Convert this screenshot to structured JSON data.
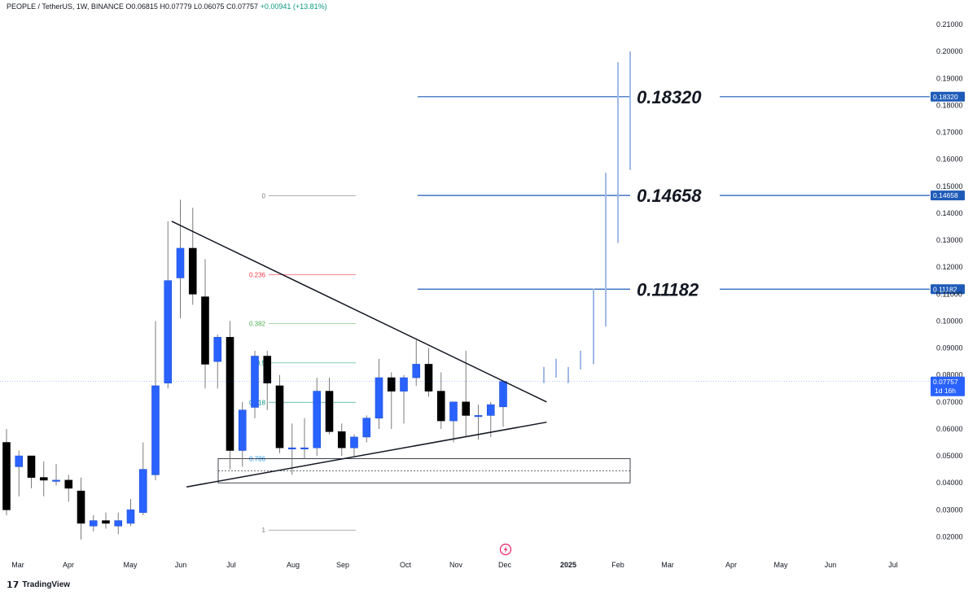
{
  "header": {
    "symbol": "PEOPLE / TetherUS, 1W, BINANCE",
    "ohlc": "O0.06815 H0.07779 L0.06075 C0.07757",
    "change": "+0.00941 (+13.81%)"
  },
  "brand": {
    "name": "TradingView"
  },
  "colors": {
    "bull": "#2962ff",
    "bear": "#000000",
    "target_line": "#1e5bb8",
    "projection": "#9fb9e8"
  },
  "chart_data": {
    "type": "candlestick",
    "title": "PEOPLE / TetherUS, 1W, BINANCE",
    "ylim": [
      0.014,
      0.214
    ],
    "y_ticks": [
      "0.21000",
      "0.20000",
      "0.19000",
      "0.18000",
      "0.17000",
      "0.16000",
      "0.15000",
      "0.14000",
      "0.13000",
      "0.12000",
      "0.11000",
      "0.10000",
      "0.09000",
      "0.08000",
      "0.07000",
      "0.06000",
      "0.05000",
      "0.04000",
      "0.03000",
      "0.02000"
    ],
    "x_ticks": [
      "Mar",
      "Apr",
      "May",
      "Jun",
      "Jul",
      "Aug",
      "Sep",
      "Oct",
      "Nov",
      "Dec",
      "2025",
      "Feb",
      "Mar",
      "Apr",
      "May",
      "Jun",
      "Jul"
    ],
    "candles": [
      {
        "o": 0.055,
        "h": 0.06,
        "l": 0.028,
        "c": 0.03
      },
      {
        "o": 0.046,
        "h": 0.052,
        "l": 0.035,
        "c": 0.05
      },
      {
        "o": 0.05,
        "h": 0.05,
        "l": 0.038,
        "c": 0.042
      },
      {
        "o": 0.042,
        "h": 0.048,
        "l": 0.035,
        "c": 0.041
      },
      {
        "o": 0.041,
        "h": 0.047,
        "l": 0.039,
        "c": 0.041
      },
      {
        "o": 0.041,
        "h": 0.043,
        "l": 0.033,
        "c": 0.038
      },
      {
        "o": 0.037,
        "h": 0.042,
        "l": 0.019,
        "c": 0.025
      },
      {
        "o": 0.024,
        "h": 0.028,
        "l": 0.022,
        "c": 0.026
      },
      {
        "o": 0.026,
        "h": 0.029,
        "l": 0.023,
        "c": 0.025
      },
      {
        "o": 0.024,
        "h": 0.029,
        "l": 0.021,
        "c": 0.026
      },
      {
        "o": 0.025,
        "h": 0.034,
        "l": 0.024,
        "c": 0.03
      },
      {
        "o": 0.029,
        "h": 0.055,
        "l": 0.028,
        "c": 0.045
      },
      {
        "o": 0.043,
        "h": 0.1,
        "l": 0.041,
        "c": 0.076
      },
      {
        "o": 0.077,
        "h": 0.137,
        "l": 0.075,
        "c": 0.115
      },
      {
        "o": 0.116,
        "h": 0.145,
        "l": 0.101,
        "c": 0.127
      },
      {
        "o": 0.127,
        "h": 0.142,
        "l": 0.106,
        "c": 0.11
      },
      {
        "o": 0.109,
        "h": 0.123,
        "l": 0.075,
        "c": 0.084
      },
      {
        "o": 0.085,
        "h": 0.095,
        "l": 0.075,
        "c": 0.094
      },
      {
        "o": 0.094,
        "h": 0.1,
        "l": 0.045,
        "c": 0.052
      },
      {
        "o": 0.052,
        "h": 0.07,
        "l": 0.046,
        "c": 0.067
      },
      {
        "o": 0.068,
        "h": 0.089,
        "l": 0.064,
        "c": 0.087
      },
      {
        "o": 0.087,
        "h": 0.089,
        "l": 0.067,
        "c": 0.077
      },
      {
        "o": 0.076,
        "h": 0.08,
        "l": 0.051,
        "c": 0.053
      },
      {
        "o": 0.053,
        "h": 0.062,
        "l": 0.043,
        "c": 0.053
      },
      {
        "o": 0.053,
        "h": 0.064,
        "l": 0.049,
        "c": 0.053
      },
      {
        "o": 0.053,
        "h": 0.079,
        "l": 0.05,
        "c": 0.074
      },
      {
        "o": 0.074,
        "h": 0.079,
        "l": 0.058,
        "c": 0.059
      },
      {
        "o": 0.059,
        "h": 0.062,
        "l": 0.05,
        "c": 0.053
      },
      {
        "o": 0.053,
        "h": 0.058,
        "l": 0.05,
        "c": 0.057
      },
      {
        "o": 0.057,
        "h": 0.065,
        "l": 0.055,
        "c": 0.064
      },
      {
        "o": 0.064,
        "h": 0.086,
        "l": 0.06,
        "c": 0.079
      },
      {
        "o": 0.079,
        "h": 0.081,
        "l": 0.06,
        "c": 0.074
      },
      {
        "o": 0.074,
        "h": 0.08,
        "l": 0.062,
        "c": 0.079
      },
      {
        "o": 0.079,
        "h": 0.093,
        "l": 0.076,
        "c": 0.084
      },
      {
        "o": 0.084,
        "h": 0.09,
        "l": 0.072,
        "c": 0.074
      },
      {
        "o": 0.074,
        "h": 0.081,
        "l": 0.06,
        "c": 0.063
      },
      {
        "o": 0.063,
        "h": 0.07,
        "l": 0.055,
        "c": 0.07
      },
      {
        "o": 0.07,
        "h": 0.089,
        "l": 0.057,
        "c": 0.065
      },
      {
        "o": 0.065,
        "h": 0.069,
        "l": 0.056,
        "c": 0.065
      },
      {
        "o": 0.065,
        "h": 0.07,
        "l": 0.057,
        "c": 0.069
      },
      {
        "o": 0.0682,
        "h": 0.0778,
        "l": 0.0608,
        "c": 0.0776
      }
    ],
    "projection_bars": [
      {
        "low": 0.077,
        "high": 0.083
      },
      {
        "low": 0.079,
        "high": 0.086
      },
      {
        "low": 0.077,
        "high": 0.083
      },
      {
        "low": 0.082,
        "high": 0.089
      },
      {
        "low": 0.084,
        "high": 0.112
      },
      {
        "low": 0.098,
        "high": 0.155
      },
      {
        "low": 0.129,
        "high": 0.196
      },
      {
        "low": 0.156,
        "high": 0.2
      }
    ],
    "target_levels": [
      {
        "value": 0.1832,
        "label": "0.18320"
      },
      {
        "value": 0.14658,
        "label": "0.14658"
      },
      {
        "value": 0.11182,
        "label": "0.11182"
      }
    ],
    "current_price": {
      "value": 0.07757,
      "label": "0.07757",
      "countdown": "1d 16h"
    },
    "fibonacci": [
      {
        "ratio": "0",
        "color": "#787b86"
      },
      {
        "ratio": "0.236",
        "color": "#f23645"
      },
      {
        "ratio": "0.382",
        "color": "#4caf50"
      },
      {
        "ratio": "0.5",
        "color": "#089981"
      },
      {
        "ratio": "0.618",
        "color": "#089981"
      },
      {
        "ratio": "0.786",
        "color": "#2196f3"
      },
      {
        "ratio": "1",
        "color": "#787b86"
      }
    ],
    "fib_range": {
      "top": 0.1465,
      "bottom": 0.0225
    },
    "support_box": {
      "top": 0.049,
      "bottom": 0.04
    },
    "triangle": {
      "upper": [
        {
          "i": 13.3,
          "v": 0.137
        },
        {
          "i": 43.5,
          "v": 0.07
        }
      ],
      "lower": [
        {
          "i": 14.5,
          "v": 0.0385
        },
        {
          "i": 43.5,
          "v": 0.0625
        }
      ]
    }
  }
}
